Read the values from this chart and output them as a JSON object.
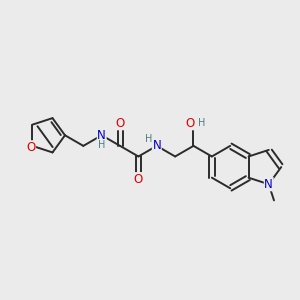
{
  "bg_color": "#ebebeb",
  "bond_color": "#2b2b2b",
  "bond_width": 1.4,
  "atom_colors": {
    "O": "#e00000",
    "N": "#0000cc",
    "H_amide": "#4a8080",
    "H_oh": "#4a8080",
    "C": "#2b2b2b"
  },
  "font_size_heavy": 8.5,
  "font_size_H": 7.0,
  "figsize": [
    3.0,
    3.0
  ],
  "dpi": 100,
  "xlim": [
    0,
    10
  ],
  "ylim": [
    0,
    10
  ]
}
